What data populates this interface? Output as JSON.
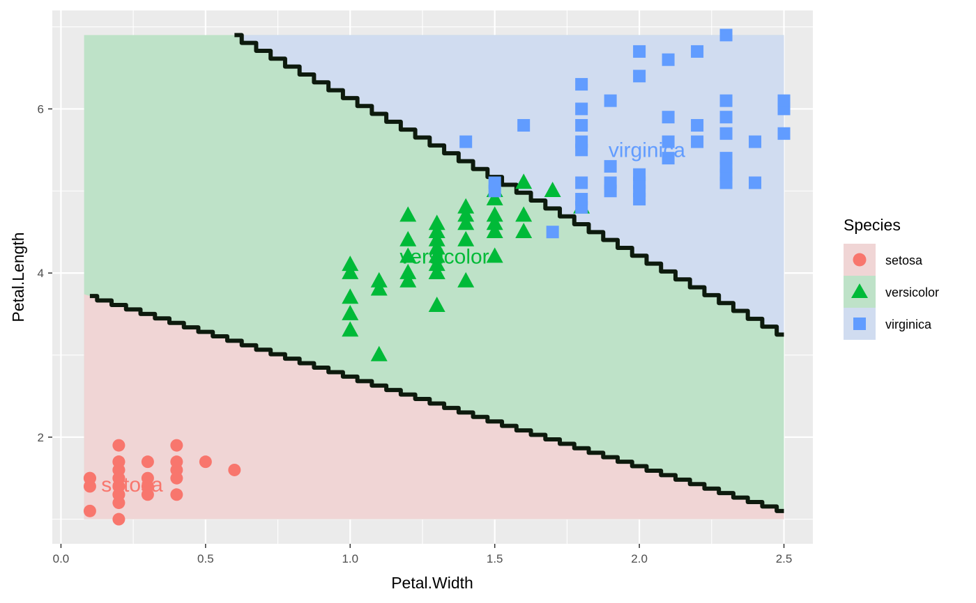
{
  "chart_data": {
    "type": "scatter",
    "xlabel": "Petal.Width",
    "ylabel": "Petal.Length",
    "xlim": [
      -0.03,
      2.6
    ],
    "ylim": [
      0.7,
      7.2
    ],
    "x_ticks": [
      0.0,
      0.5,
      1.0,
      1.5,
      2.0,
      2.5
    ],
    "x_tick_labels": [
      "0.0",
      "0.5",
      "1.0",
      "1.5",
      "2.0",
      "2.5"
    ],
    "y_ticks": [
      2,
      4,
      6
    ],
    "y_tick_labels": [
      "2",
      "4",
      "6"
    ],
    "grid": true,
    "legend": {
      "title": "Species",
      "position": "right",
      "entries": [
        {
          "label": "setosa",
          "shape": "circle",
          "color": "#F8766D",
          "fill": "#F0D5D5"
        },
        {
          "label": "versicolor",
          "shape": "triangle",
          "color": "#00BA38",
          "fill": "#BEE2C8"
        },
        {
          "label": "virginica",
          "shape": "square",
          "color": "#619CFF",
          "fill": "#D0DCF0"
        }
      ]
    },
    "regions": {
      "x_range": [
        0.08,
        2.5
      ],
      "y_range": [
        1.0,
        6.9
      ],
      "boundary_lower": {
        "x": [
          0.1,
          2.5
        ],
        "y": [
          3.72,
          1.1
        ]
      },
      "boundary_upper": {
        "x": [
          0.6,
          2.5
        ],
        "y": [
          6.9,
          3.25
        ]
      }
    },
    "class_labels": [
      {
        "text": "setosa",
        "x": 0.246,
        "y": 1.42,
        "color": "#F8766D"
      },
      {
        "text": "versicolor",
        "x": 1.326,
        "y": 4.2,
        "color": "#00BA38"
      },
      {
        "text": "virginica",
        "x": 2.026,
        "y": 5.5,
        "color": "#619CFF"
      }
    ],
    "series": [
      {
        "name": "setosa",
        "x": [
          0.1,
          0.1,
          0.1,
          0.1,
          0.2,
          0.2,
          0.2,
          0.2,
          0.2,
          0.2,
          0.2,
          0.2,
          0.2,
          0.2,
          0.2,
          0.2,
          0.2,
          0.3,
          0.3,
          0.3,
          0.3,
          0.4,
          0.4,
          0.4,
          0.4,
          0.4,
          0.5,
          0.6
        ],
        "y": [
          1.5,
          1.4,
          1.1,
          1.5,
          1.9,
          1.7,
          1.6,
          1.5,
          1.4,
          1.3,
          1.2,
          1.0,
          1.6,
          1.5,
          1.4,
          1.3,
          1.7,
          1.7,
          1.5,
          1.4,
          1.3,
          1.9,
          1.7,
          1.6,
          1.5,
          1.3,
          1.7,
          1.6
        ]
      },
      {
        "name": "versicolor",
        "x": [
          1.0,
          1.0,
          1.0,
          1.0,
          1.0,
          1.1,
          1.1,
          1.1,
          1.2,
          1.2,
          1.2,
          1.2,
          1.2,
          1.3,
          1.3,
          1.3,
          1.3,
          1.3,
          1.3,
          1.3,
          1.3,
          1.3,
          1.4,
          1.4,
          1.4,
          1.4,
          1.4,
          1.5,
          1.5,
          1.5,
          1.5,
          1.5,
          1.5,
          1.6,
          1.6,
          1.6,
          1.7,
          1.8
        ],
        "y": [
          3.3,
          3.5,
          3.7,
          4.0,
          4.1,
          3.0,
          3.8,
          3.9,
          3.9,
          4.0,
          4.2,
          4.4,
          4.7,
          3.6,
          4.0,
          4.1,
          4.2,
          4.3,
          4.4,
          4.5,
          4.6,
          4.0,
          3.9,
          4.4,
          4.6,
          4.7,
          4.8,
          4.2,
          4.5,
          4.6,
          4.7,
          4.9,
          5.0,
          4.5,
          4.7,
          5.1,
          5.0,
          4.8
        ]
      },
      {
        "name": "virginica",
        "x": [
          1.4,
          1.5,
          1.5,
          1.6,
          1.7,
          1.8,
          1.8,
          1.8,
          1.8,
          1.8,
          1.8,
          1.8,
          1.8,
          1.9,
          1.9,
          1.9,
          1.9,
          2.0,
          2.0,
          2.0,
          2.0,
          2.0,
          2.0,
          2.1,
          2.1,
          2.1,
          2.1,
          2.2,
          2.2,
          2.2,
          2.3,
          2.3,
          2.3,
          2.3,
          2.3,
          2.3,
          2.3,
          2.3,
          2.4,
          2.4,
          2.5,
          2.5,
          2.5
        ],
        "y": [
          5.6,
          5.0,
          5.1,
          5.8,
          4.5,
          4.8,
          4.9,
          5.1,
          5.5,
          5.6,
          5.8,
          6.0,
          6.3,
          5.0,
          5.1,
          5.3,
          6.1,
          4.9,
          5.0,
          5.1,
          5.2,
          6.4,
          6.7,
          5.4,
          5.6,
          5.9,
          6.6,
          5.6,
          5.8,
          6.7,
          5.1,
          5.2,
          5.3,
          5.4,
          5.7,
          5.9,
          6.1,
          6.9,
          5.1,
          5.6,
          5.7,
          6.0,
          6.1
        ]
      }
    ]
  }
}
